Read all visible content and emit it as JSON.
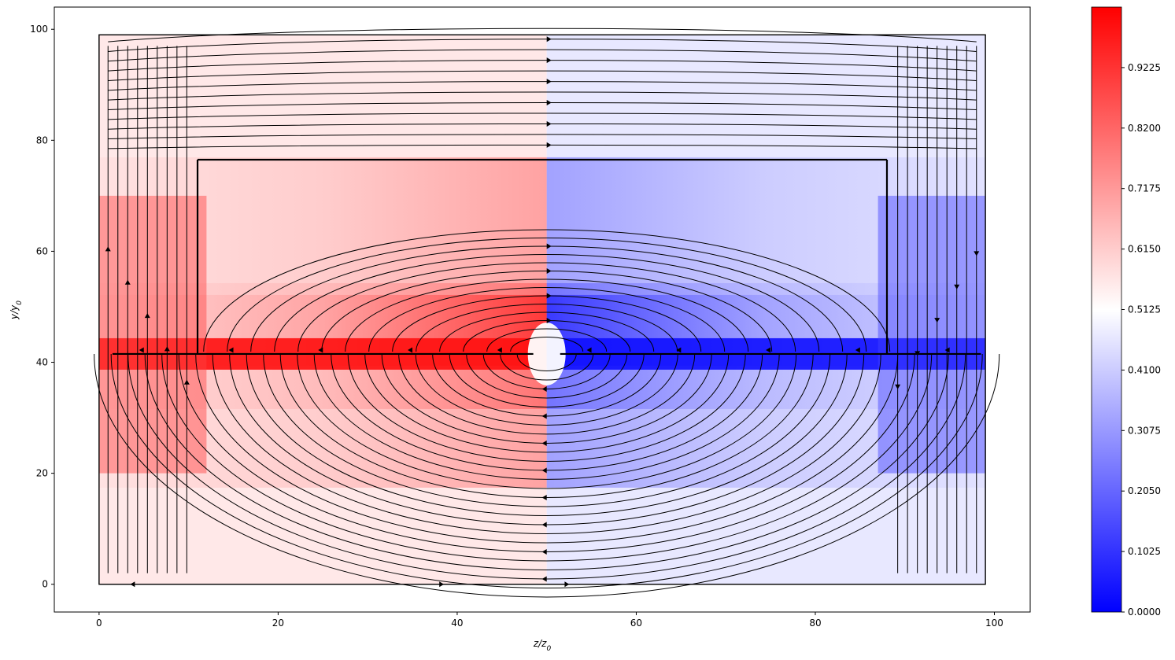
{
  "chart_data": {
    "type": "streamplot",
    "xlabel": "z/z0",
    "ylabel": "y/y0",
    "xlim": [
      -5,
      104
    ],
    "ylim": [
      -5,
      104
    ],
    "x_ticks": [
      0,
      20,
      40,
      60,
      80,
      100
    ],
    "y_ticks": [
      0,
      20,
      40,
      60,
      80,
      100
    ],
    "colorbar": {
      "colormap": "bwr",
      "range": [
        0.0,
        1.025
      ],
      "ticks": [
        "0.0000",
        "0.1025",
        "0.2050",
        "0.3075",
        "0.4100",
        "0.5125",
        "0.6150",
        "0.7175",
        "0.8200",
        "0.9225"
      ]
    },
    "domain": {
      "x": [
        0,
        99
      ],
      "y": [
        0,
        99
      ]
    },
    "electrodes": [
      {
        "name": "left plate",
        "x": [
          1.5,
          48.5
        ],
        "y": 41.5,
        "potential": 1.0
      },
      {
        "name": "right plate",
        "x": [
          51.5,
          98.5
        ],
        "y": 41.5,
        "potential": 0.0
      },
      {
        "name": "upper frame left",
        "x": [
          11,
          11
        ],
        "y": [
          41.5,
          76.5
        ],
        "potential": 0.5
      },
      {
        "name": "upper frame top",
        "x": [
          11,
          88
        ],
        "y": [
          76.5,
          76.5
        ],
        "potential": 0.5
      },
      {
        "name": "upper frame right",
        "x": [
          88,
          88
        ],
        "y": [
          41.5,
          76.5
        ],
        "potential": 0.5
      }
    ],
    "colors": {
      "high": "#ff0000",
      "mid": "#ffffff",
      "low": "#0000ff",
      "streamline": "#000000"
    },
    "grid": false
  }
}
